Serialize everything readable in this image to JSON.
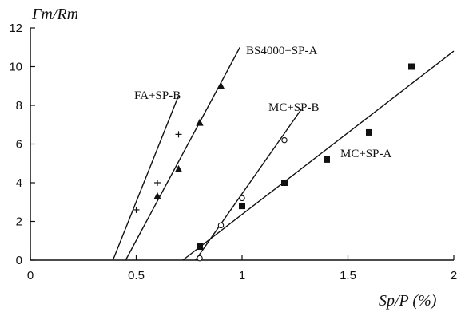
{
  "chart_data": {
    "type": "scatter",
    "x_label": "Sp/P (%)",
    "y_label": "Γm/Rm",
    "xlim": [
      0,
      2
    ],
    "ylim": [
      0,
      12
    ],
    "x_ticks": [
      "0",
      "0.5",
      "1",
      "1.5",
      "2"
    ],
    "y_ticks": [
      "0",
      "2",
      "4",
      "6",
      "8",
      "10",
      "12"
    ],
    "grid": false,
    "series": [
      {
        "name": "FA+SP-B",
        "marker": "plus",
        "points": [
          [
            0.5,
            2.6
          ],
          [
            0.6,
            4.0
          ],
          [
            0.7,
            6.5
          ]
        ],
        "fit_line": {
          "x": [
            0.39,
            0.7
          ],
          "y": [
            0,
            8.5
          ]
        }
      },
      {
        "name": "BS4000+SP-A",
        "marker": "triangle",
        "points": [
          [
            0.6,
            3.3
          ],
          [
            0.7,
            4.7
          ],
          [
            0.8,
            7.1
          ],
          [
            0.9,
            9.0
          ]
        ],
        "fit_line": {
          "x": [
            0.45,
            0.99
          ],
          "y": [
            0,
            11
          ]
        }
      },
      {
        "name": "MC+SP-B",
        "marker": "open-circle",
        "points": [
          [
            0.8,
            0.1
          ],
          [
            0.9,
            1.8
          ],
          [
            1.0,
            3.2
          ],
          [
            1.2,
            6.2
          ]
        ],
        "fit_line": {
          "x": [
            0.78,
            1.28
          ],
          "y": [
            0,
            7.8
          ]
        }
      },
      {
        "name": "MC+SP-A",
        "marker": "square",
        "points": [
          [
            0.8,
            0.7
          ],
          [
            1.0,
            2.8
          ],
          [
            1.2,
            4.0
          ],
          [
            1.4,
            5.2
          ],
          [
            1.6,
            6.6
          ],
          [
            1.8,
            10.0
          ]
        ],
        "fit_line": {
          "x": [
            0.72,
            2.0
          ],
          "y": [
            0,
            10.8
          ]
        }
      }
    ]
  }
}
